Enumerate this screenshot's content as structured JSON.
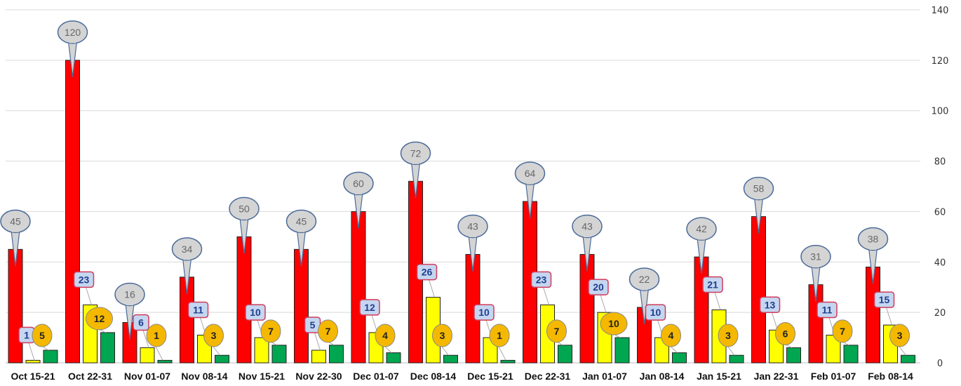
{
  "chart_data": {
    "type": "bar",
    "categories": [
      "Oct 15-21",
      "Oct 22-31",
      "Nov 01-07",
      "Nov 08-14",
      "Nov 15-21",
      "Nov 22-30",
      "Dec 01-07",
      "Dec 08-14",
      "Dec 15-21",
      "Dec 22-31",
      "Jan 01-07",
      "Jan 08-14",
      "Jan 15-21",
      "Jan 22-31",
      "Feb 01-07",
      "Feb 08-14"
    ],
    "series": [
      {
        "color": "#ff0000",
        "label_style": "callout",
        "values": [
          45,
          120,
          16,
          34,
          50,
          45,
          60,
          72,
          43,
          64,
          43,
          22,
          42,
          58,
          31,
          38
        ]
      },
      {
        "color": "#ffff00",
        "label_style": "box",
        "values": [
          1,
          23,
          6,
          11,
          10,
          5,
          12,
          26,
          10,
          23,
          20,
          10,
          21,
          13,
          11,
          15
        ]
      },
      {
        "color": "#00a650",
        "label_style": "ellipse",
        "values": [
          5,
          12,
          1,
          3,
          7,
          7,
          4,
          3,
          1,
          7,
          10,
          4,
          3,
          6,
          7,
          3
        ]
      }
    ],
    "ylim": [
      0,
      140
    ],
    "yticks": [
      0,
      20,
      40,
      60,
      80,
      100,
      120,
      140
    ],
    "y_axis_side": "right",
    "grid": true,
    "legend": "none"
  }
}
